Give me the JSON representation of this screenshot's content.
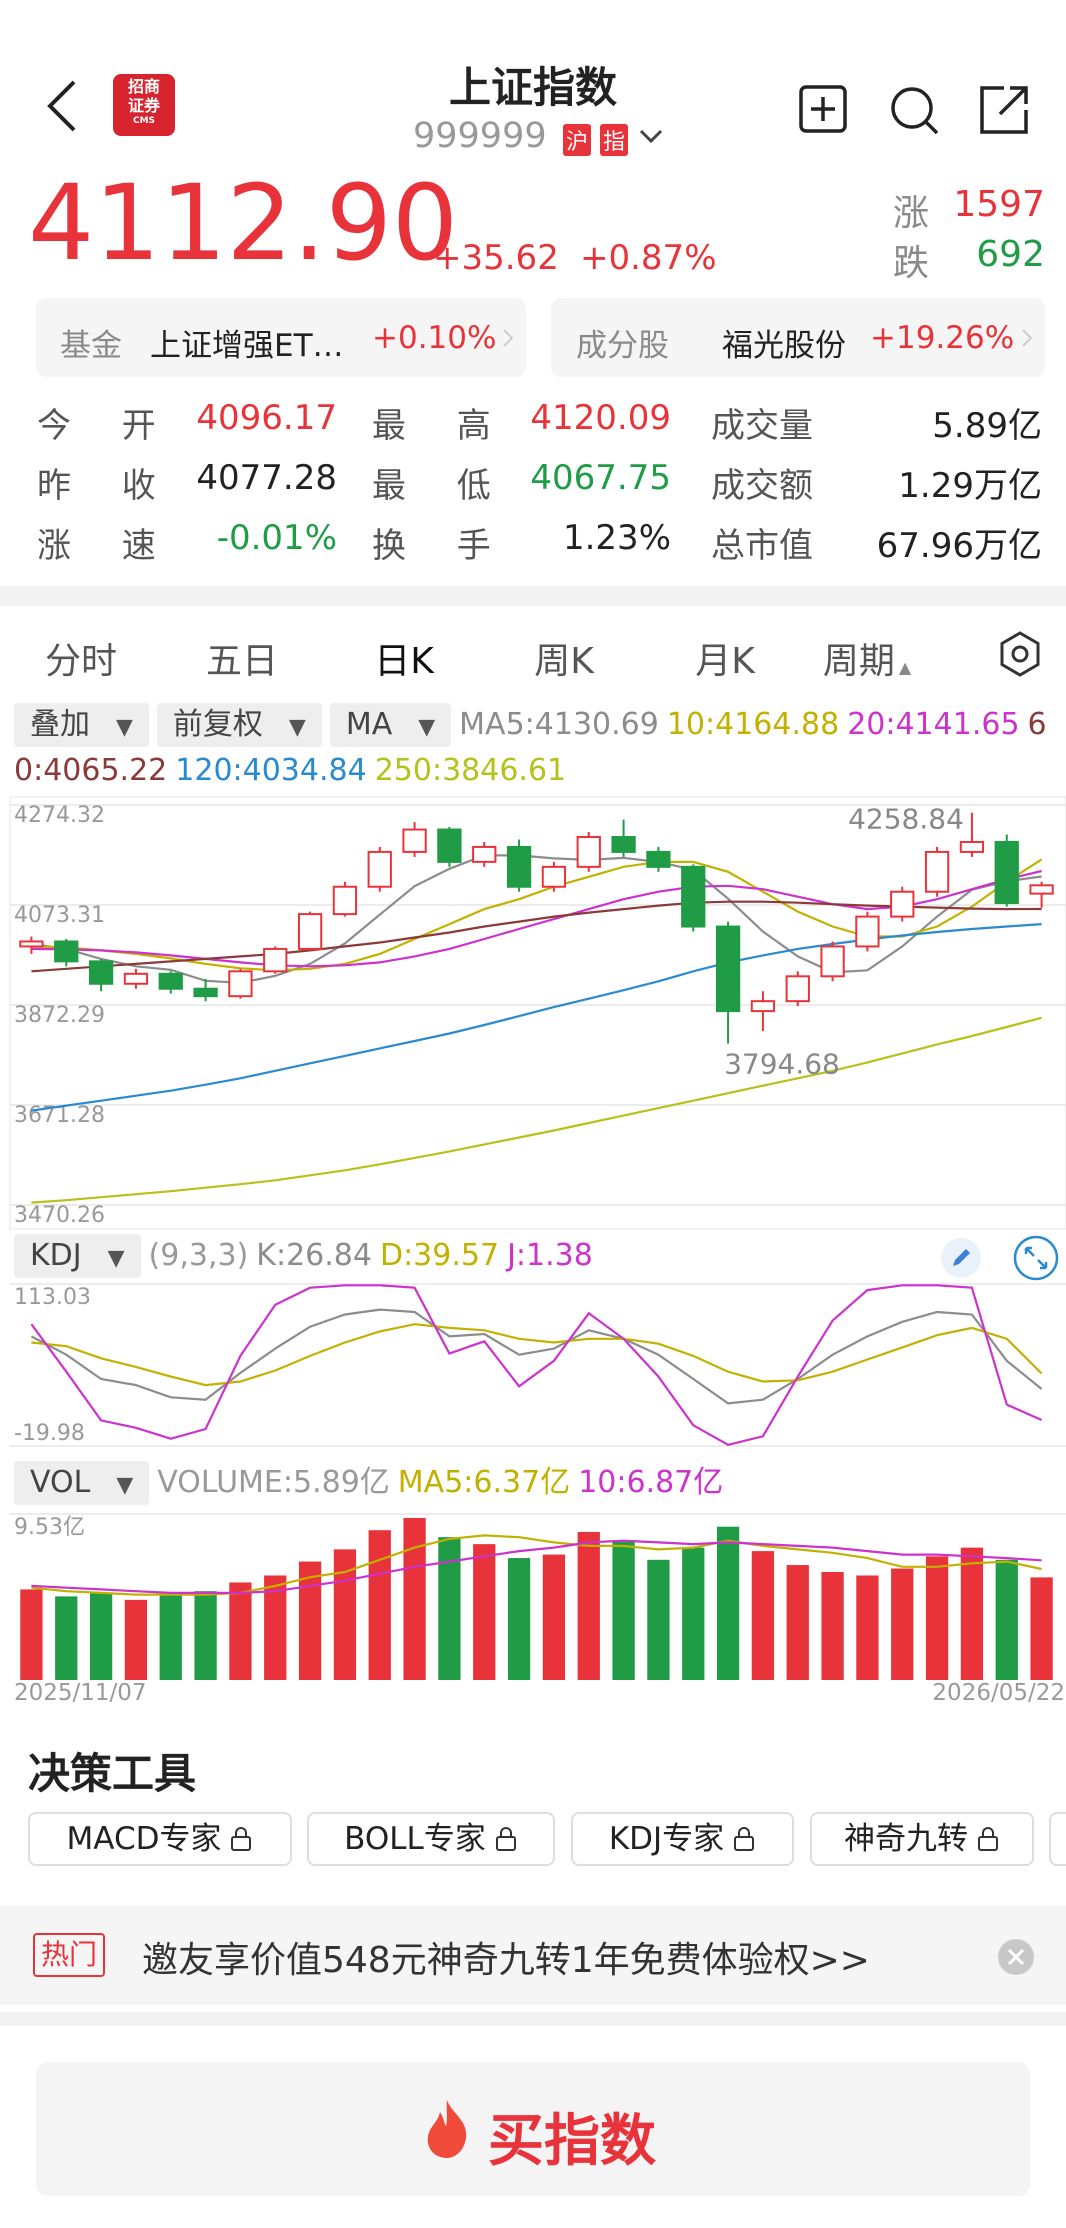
{
  "header": {
    "title": "上证指数",
    "code": "999999",
    "tags": [
      "沪",
      "指"
    ],
    "logo": [
      "招商",
      "证券",
      "CMS"
    ]
  },
  "quote": {
    "price": "4112.90",
    "change": "+35.62",
    "percent": "+0.87%",
    "rise_label": "涨",
    "rise_count": "1597",
    "fall_label": "跌",
    "fall_count": "692"
  },
  "cards": [
    {
      "label": "基金",
      "name": "上证增强ET…",
      "percent": "+0.10%"
    },
    {
      "label": "成分股",
      "name": "福光股份",
      "percent": "+19.26%"
    }
  ],
  "stats": [
    [
      {
        "label": "今 开",
        "value": "4096.17",
        "tone": "up"
      },
      {
        "label": "最 高",
        "value": "4120.09",
        "tone": "up"
      },
      {
        "label": "成交量",
        "value": "5.89亿",
        "tone": "flat"
      }
    ],
    [
      {
        "label": "昨 收",
        "value": "4077.28",
        "tone": "flat"
      },
      {
        "label": "最 低",
        "value": "4067.75",
        "tone": "down"
      },
      {
        "label": "成交额",
        "value": "1.29万亿",
        "tone": "flat"
      }
    ],
    [
      {
        "label": "涨 速",
        "value": "-0.01%",
        "tone": "down"
      },
      {
        "label": "换 手",
        "value": "1.23%",
        "tone": "flat"
      },
      {
        "label": "总市值",
        "value": "67.96万亿",
        "tone": "flat"
      }
    ]
  ],
  "tabs": [
    "分时",
    "五日",
    "日K",
    "周K",
    "月K",
    "周期"
  ],
  "indicator_selectors": [
    "叠加",
    "前复权",
    "MA"
  ],
  "chart_data": [
    {
      "type": "candlestick",
      "up_color": "#e8333a",
      "down_color": "#1f9c45",
      "grid": true,
      "ylim": [
        3470.26,
        4274.32
      ],
      "yticks": [
        4274.32,
        4073.31,
        3872.29,
        3671.28,
        3470.26
      ],
      "open": [
        3990,
        4000,
        3960,
        3915,
        3935,
        3905,
        3890,
        3940,
        3985,
        4055,
        4110,
        4180,
        4225,
        4160,
        4190,
        4110,
        4150,
        4210,
        4180,
        4150,
        4030,
        3860,
        3880,
        3930,
        3990,
        4050,
        4100,
        4180,
        4200,
        4096.17
      ],
      "high": [
        4010,
        4005,
        3965,
        3945,
        3940,
        3925,
        3945,
        3990,
        4060,
        4120,
        4190,
        4240,
        4230,
        4200,
        4205,
        4160,
        4220,
        4245,
        4190,
        4155,
        4040,
        3900,
        3940,
        4000,
        4060,
        4110,
        4190,
        4258.84,
        4215,
        4120.09
      ],
      "low": [
        3975,
        3950,
        3900,
        3905,
        3895,
        3880,
        3885,
        3935,
        3980,
        4050,
        4100,
        4170,
        4150,
        4150,
        4100,
        4100,
        4140,
        4170,
        4140,
        4020,
        3794.68,
        3820,
        3870,
        3920,
        3980,
        4040,
        4090,
        4170,
        4070,
        4067.75
      ],
      "close": [
        4000,
        3960,
        3915,
        3935,
        3905,
        3890,
        3940,
        3985,
        4055,
        4110,
        4180,
        4225,
        4160,
        4190,
        4110,
        4150,
        4210,
        4180,
        4150,
        4030,
        3860,
        3880,
        3930,
        3990,
        4050,
        4100,
        4180,
        4200,
        4077.28,
        4112.9
      ],
      "lines": [
        {
          "name": "MA5:4130.69",
          "color": "#8c8c8c",
          "values": [
            3995,
            3985,
            3965,
            3950,
            3943,
            3921,
            3917,
            3931,
            3955,
            3996,
            4054,
            4111,
            4146,
            4173,
            4173,
            4167,
            4164,
            4168,
            4160,
            4144,
            4086,
            4020,
            3970,
            3938,
            3942,
            3990,
            4050,
            4104,
            4121,
            4130.69
          ]
        },
        {
          "name": "10:4164.88",
          "color": "#c2b100",
          "values": [
            3990,
            3988,
            3982,
            3975,
            3966,
            3955,
            3946,
            3942,
            3945,
            3955,
            3975,
            4005,
            4035,
            4065,
            4085,
            4110,
            4130,
            4150,
            4160,
            4160,
            4140,
            4100,
            4060,
            4030,
            4010,
            4010,
            4030,
            4070,
            4120,
            4164.88
          ]
        },
        {
          "name": "20:4141.65",
          "color": "#cc33cc",
          "values": [
            3985,
            3984,
            3982,
            3978,
            3972,
            3965,
            3958,
            3952,
            3950,
            3952,
            3958,
            3970,
            3985,
            4005,
            4025,
            4045,
            4065,
            4085,
            4100,
            4110,
            4112,
            4105,
            4090,
            4075,
            4065,
            4070,
            4085,
            4105,
            4125,
            4141.65
          ]
        },
        {
          "name": "60:4065.22",
          "color": "#8b3a3a",
          "values": [
            3940,
            3945,
            3950,
            3955,
            3960,
            3965,
            3970,
            3975,
            3982,
            3990,
            3998,
            4008,
            4018,
            4030,
            4040,
            4050,
            4058,
            4065,
            4072,
            4078,
            4080,
            4080,
            4078,
            4075,
            4072,
            4070,
            4068,
            4066,
            4065,
            4065.22
          ]
        },
        {
          "name": "120:4034.84",
          "color": "#2a8ad0",
          "values": [
            3660,
            3670,
            3680,
            3690,
            3700,
            3712,
            3725,
            3740,
            3755,
            3770,
            3785,
            3800,
            3815,
            3832,
            3850,
            3868,
            3885,
            3902,
            3920,
            3940,
            3958,
            3972,
            3985,
            3995,
            4004,
            4012,
            4019,
            4025,
            4030,
            4034.84
          ]
        },
        {
          "name": "250:3846.61",
          "color": "#b5c21a",
          "values": [
            3475,
            3480,
            3486,
            3492,
            3498,
            3505,
            3512,
            3520,
            3530,
            3540,
            3552,
            3565,
            3578,
            3592,
            3606,
            3620,
            3635,
            3650,
            3665,
            3680,
            3695,
            3710,
            3725,
            3740,
            3757,
            3775,
            3793,
            3810,
            3828,
            3846.61
          ]
        }
      ],
      "annotations": [
        4258.84,
        3794.68
      ]
    },
    {
      "type": "line",
      "indicator": "KDJ",
      "params": "(9,3,3)",
      "grid": true,
      "ylim": [
        -19.98,
        113.03
      ],
      "yticks": [
        113.03,
        -19.98
      ],
      "series": [
        {
          "name": "K:26.84",
          "color": "#8c8c8c",
          "values": [
            70,
            55,
            35,
            30,
            20,
            18,
            40,
            60,
            78,
            88,
            92,
            90,
            70,
            72,
            55,
            60,
            75,
            68,
            55,
            35,
            15,
            18,
            35,
            55,
            70,
            82,
            90,
            88,
            50,
            26.84
          ]
        },
        {
          "name": "D:39.57",
          "color": "#c2b100",
          "values": [
            65,
            62,
            52,
            45,
            37,
            30,
            33,
            42,
            54,
            65,
            74,
            80,
            77,
            75,
            68,
            65,
            68,
            68,
            64,
            54,
            41,
            33,
            34,
            41,
            51,
            61,
            71,
            77,
            68,
            39.57
          ]
        },
        {
          "name": "J:1.38",
          "color": "#cc33cc",
          "values": [
            80,
            41,
            1,
            -5,
            -14,
            -6,
            54,
            96,
            110,
            112,
            112,
            110,
            56,
            66,
            29,
            50,
            89,
            68,
            37,
            -3,
            -19,
            -12,
            37,
            83,
            108,
            112,
            112,
            110,
            14,
            1.38
          ]
        }
      ]
    },
    {
      "type": "bar",
      "indicator": "VOL",
      "grid": true,
      "ylim": [
        0,
        9.53
      ],
      "yticks": [
        {
          "value": 9.53,
          "label": "9.53亿"
        }
      ],
      "categories": [
        "2025/11/07",
        null,
        null,
        null,
        null,
        null,
        null,
        null,
        null,
        null,
        null,
        null,
        null,
        null,
        null,
        null,
        null,
        null,
        null,
        null,
        null,
        null,
        null,
        null,
        null,
        null,
        null,
        null,
        null,
        "2026/05/22"
      ],
      "series": [
        {
          "name": "VOLUME:5.89亿",
          "values": [
            5.2,
            4.8,
            5.0,
            4.6,
            4.9,
            5.1,
            5.6,
            6.0,
            6.8,
            7.5,
            8.6,
            9.3,
            8.2,
            7.8,
            7.0,
            7.2,
            8.5,
            8.0,
            6.9,
            7.6,
            8.8,
            7.4,
            6.6,
            6.2,
            6.0,
            6.4,
            7.1,
            7.6,
            6.9,
            5.89
          ]
        },
        {
          "name": "MA5:6.37亿",
          "color": "#c2b100",
          "values": [
            5.3,
            5.1,
            5.0,
            4.9,
            4.9,
            4.9,
            5.0,
            5.4,
            5.9,
            6.2,
            6.9,
            7.6,
            8.1,
            8.3,
            8.2,
            7.9,
            7.7,
            7.7,
            7.5,
            7.6,
            8.0,
            7.7,
            7.5,
            7.3,
            7.0,
            6.5,
            6.5,
            6.7,
            6.8,
            6.37
          ]
        },
        {
          "name": "10:6.87亿",
          "color": "#cc33cc",
          "values": [
            5.4,
            5.3,
            5.2,
            5.1,
            5.0,
            5.0,
            5.0,
            5.1,
            5.4,
            5.7,
            6.1,
            6.5,
            6.8,
            7.1,
            7.4,
            7.6,
            7.9,
            8.0,
            7.9,
            7.8,
            7.9,
            7.8,
            7.7,
            7.6,
            7.4,
            7.2,
            7.2,
            7.1,
            7.0,
            6.87
          ]
        }
      ]
    }
  ],
  "tools": {
    "title": "决策工具",
    "buttons": [
      "MACD专家",
      "BOLL专家",
      "KDJ专家",
      "神奇九转"
    ]
  },
  "banner": {
    "tag": "热门",
    "text": "邀友享价值548元神奇九转1年免费体验权>>"
  },
  "buy_button": "买指数"
}
